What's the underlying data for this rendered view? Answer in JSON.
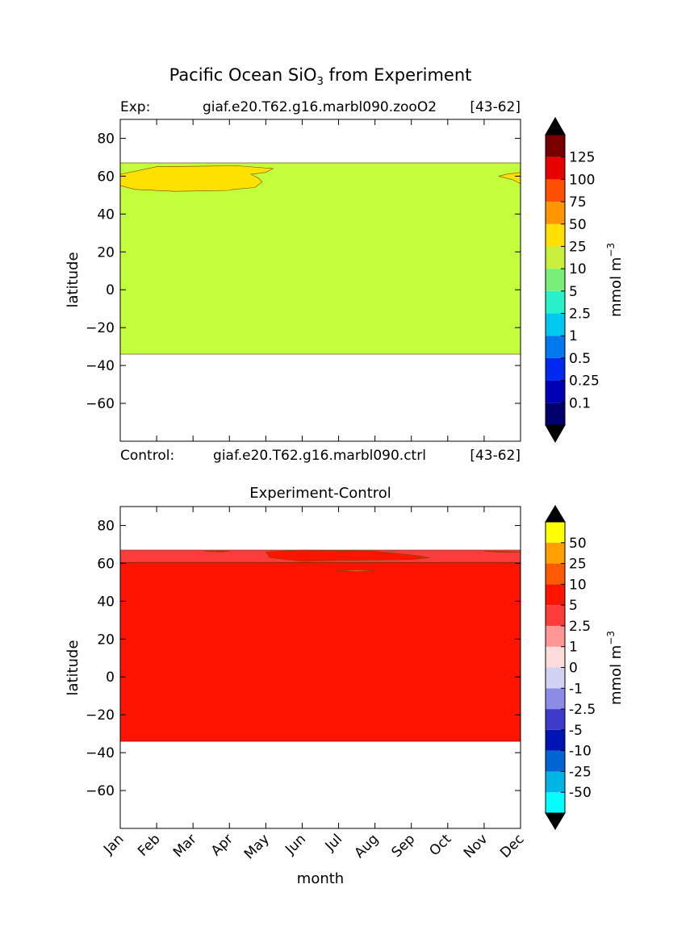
{
  "figure": {
    "title": "Pacific Ocean SiO",
    "title_sub": "3",
    "title_suffix": " from Experiment"
  },
  "chart_data": [
    {
      "type": "heatmap",
      "title_left_label": "Exp:",
      "title_center": "giaf.e20.T62.g16.marbl090.zooO2",
      "title_right": "[43-62]",
      "footer_left_label": "Control:",
      "footer_center": "giaf.e20.T62.g16.marbl090.ctrl",
      "footer_right": "[43-62]",
      "ylabel": "latitude",
      "xlim": [
        0,
        11
      ],
      "ylim": [
        -80,
        90
      ],
      "yticks": [
        80,
        60,
        40,
        20,
        0,
        -20,
        -40,
        -60
      ],
      "colorbar": {
        "label": "mmol m",
        "label_sup": "−3",
        "levels": [
          "0.1",
          "0.25",
          "0.5",
          "1",
          "2.5",
          "5",
          "10",
          "25",
          "50",
          "75",
          "100",
          "125"
        ],
        "colors": [
          "#00006e",
          "#0000b4",
          "#0028f0",
          "#0078f0",
          "#00c8f0",
          "#28f0c8",
          "#78f078",
          "#c8f03c",
          "#ffe100",
          "#ff9600",
          "#ff5000",
          "#e60000",
          "#780000"
        ],
        "extend_colors": [
          "#000000",
          "#000000"
        ]
      },
      "regions": [
        {
          "lat_from": -34,
          "lat_to": 67,
          "color": "#c3ff3c",
          "name": "10-25"
        },
        {
          "band": "25-50",
          "color": "#ffe100",
          "outline_month_lat": [
            [
              0,
              55
            ],
            [
              0.4,
              53
            ],
            [
              1.5,
              52
            ],
            [
              3,
              52.5
            ],
            [
              3.1,
              53
            ],
            [
              3.7,
              54
            ],
            [
              3.9,
              57
            ],
            [
              3.8,
              59
            ],
            [
              3.6,
              61
            ],
            [
              4,
              62
            ],
            [
              4.2,
              64
            ],
            [
              3.2,
              65.5
            ],
            [
              1,
              65
            ],
            [
              0,
              61
            ]
          ]
        },
        {
          "band": "25-50",
          "color": "#ffe100",
          "outline_month_lat": [
            [
              11,
              62
            ],
            [
              10.6,
              61
            ],
            [
              10.4,
              60
            ],
            [
              10.8,
              58
            ],
            [
              11,
              56
            ]
          ]
        }
      ]
    },
    {
      "type": "heatmap",
      "title": "Experiment-Control",
      "xlabel": "month",
      "ylabel": "latitude",
      "categories": [
        "Jan",
        "Feb",
        "Mar",
        "Apr",
        "May",
        "Jun",
        "Jul",
        "Aug",
        "Sep",
        "Oct",
        "Nov",
        "Dec"
      ],
      "xlim": [
        0,
        11
      ],
      "ylim": [
        -80,
        90
      ],
      "yticks": [
        80,
        60,
        40,
        20,
        0,
        -20,
        -40,
        -60
      ],
      "colorbar": {
        "label": "mmol m",
        "label_sup": "−3",
        "levels": [
          "-50",
          "-25",
          "-10",
          "-5",
          "-2.5",
          "-1",
          "0",
          "1",
          "2.5",
          "5",
          "10",
          "25",
          "50"
        ],
        "colors": [
          "#00ffff",
          "#00b4e6",
          "#0064d2",
          "#0014b4",
          "#3c3cc8",
          "#8c8ce6",
          "#d2d2f5",
          "#ffdcdc",
          "#ff9696",
          "#ff3c3c",
          "#ff1400",
          "#ff5a00",
          "#ffa000",
          "#ffff00"
        ],
        "extend_colors": [
          "#000000",
          "#000000"
        ]
      },
      "regions": [
        {
          "band": "10-25",
          "color": "#ff5a00",
          "lat_from": -34,
          "top_month_lat": [
            [
              0,
              43
            ],
            [
              2,
              43
            ],
            [
              4,
              43.5
            ],
            [
              6,
              44.5
            ],
            [
              7,
              45
            ],
            [
              8,
              44.5
            ],
            [
              10,
              43.7
            ],
            [
              11,
              43.5
            ]
          ]
        },
        {
          "band": "5-10",
          "color": "#ff1400",
          "lat_to": 60.5
        },
        {
          "band": "2.5-5",
          "color": "#ff3c3c",
          "lat_from": 60.5,
          "lat_to": 67
        },
        {
          "band": "5-10",
          "color": "#ff1400",
          "outline_month_lat": [
            [
              4,
              66
            ],
            [
              4.1,
              63
            ],
            [
              5,
              61
            ],
            [
              6,
              61.5
            ],
            [
              8,
              62
            ],
            [
              8.5,
              63
            ],
            [
              8.2,
              64
            ],
            [
              7,
              66.5
            ],
            [
              5,
              67
            ]
          ]
        },
        {
          "band": "5-10",
          "color": "#ff1400",
          "outline_month_lat": [
            [
              10,
              66.5
            ],
            [
              10.5,
              65.8
            ],
            [
              11,
              66
            ]
          ]
        },
        {
          "band": "5-10",
          "color": "#ff1400",
          "outline_month_lat": [
            [
              2.3,
              66.5
            ],
            [
              2.8,
              66
            ],
            [
              3,
              66.5
            ]
          ]
        },
        {
          "band": "25-50",
          "color": "#ffa000",
          "outline_month_lat": [
            [
              6,
              56
            ],
            [
              6.5,
              55.7
            ],
            [
              7,
              56
            ],
            [
              6.5,
              56.3
            ]
          ]
        }
      ]
    }
  ]
}
